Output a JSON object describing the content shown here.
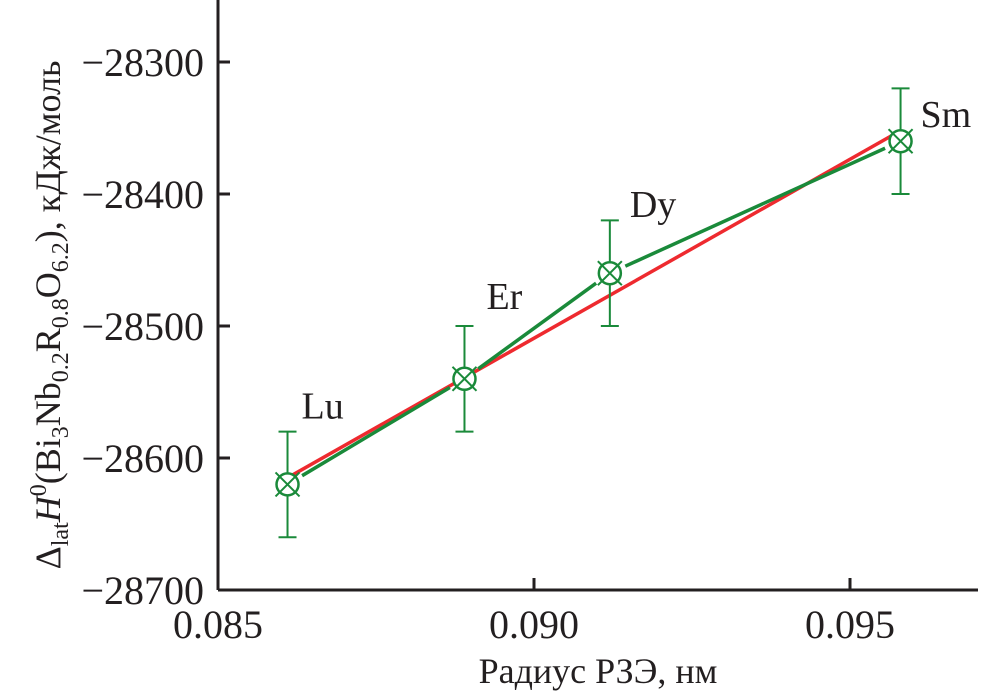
{
  "chart_data": {
    "type": "line",
    "xlabel": "Радиус РЗЭ, нм",
    "ylabel_parts": {
      "delta": "Δ",
      "delta_sub": "lat",
      "H": "H",
      "H_sup": "0",
      "open": "(Bi",
      "s1": "3",
      "nb": "Nb",
      "s2": "0.2",
      "r": "R",
      "s3": "0.8",
      "o": "O",
      "s4": "6.2",
      "close": "), кДж/моль"
    },
    "xlim": [
      0.085,
      0.097
    ],
    "ylim": [
      -28700,
      -28253
    ],
    "x_ticks": [
      {
        "value": 0.085,
        "label": "0.085"
      },
      {
        "value": 0.09,
        "label": "0.090"
      },
      {
        "value": 0.095,
        "label": "0.095"
      }
    ],
    "y_ticks": [
      {
        "value": -28300,
        "label": "−28300"
      },
      {
        "value": -28400,
        "label": "−28400"
      },
      {
        "value": -28500,
        "label": "−28500"
      },
      {
        "value": -28600,
        "label": "−28600"
      },
      {
        "value": -28700,
        "label": "−28700"
      }
    ],
    "series": [
      {
        "kind": "data",
        "color": "#1a8a3a",
        "points": [
          {
            "label": "Lu",
            "x": 0.0861,
            "y": -28620,
            "err": 40
          },
          {
            "label": "Er",
            "x": 0.0889,
            "y": -28540,
            "err": 40
          },
          {
            "label": "Dy",
            "x": 0.0912,
            "y": -28460,
            "err": 40
          },
          {
            "label": "Sm",
            "x": 0.0958,
            "y": -28360,
            "err": 40
          }
        ]
      },
      {
        "kind": "linear fit",
        "color": "#ee2a2f",
        "points": [
          {
            "x": 0.0861,
            "y": -28615
          },
          {
            "x": 0.0958,
            "y": -28352
          }
        ]
      }
    ],
    "grid": false
  }
}
